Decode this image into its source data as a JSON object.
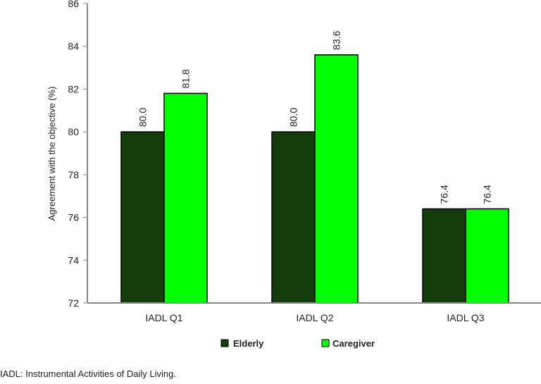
{
  "chart_data": {
    "type": "bar",
    "categories": [
      "IADL Q1",
      "IADL Q2",
      "IADL Q3"
    ],
    "series": [
      {
        "name": "Elderly",
        "values": [
          80.0,
          80.0,
          76.4
        ],
        "color": "#143d0c"
      },
      {
        "name": "Caregiver",
        "values": [
          81.8,
          83.6,
          76.4
        ],
        "color": "#00ff00"
      }
    ],
    "data_labels": [
      [
        "80.0",
        "80.0",
        "76.4"
      ],
      [
        "81.8",
        "83.6",
        "76.4"
      ]
    ],
    "xlabel": "",
    "ylabel": "Agreement with the objective (%)",
    "ylim": [
      72,
      86
    ],
    "yticks": [
      "72",
      "74",
      "76",
      "78",
      "80",
      "82",
      "84",
      "86"
    ],
    "grid": false,
    "legend_position": "bottom"
  },
  "footnote": "IADL: Instrumental Activities of Daily Living."
}
